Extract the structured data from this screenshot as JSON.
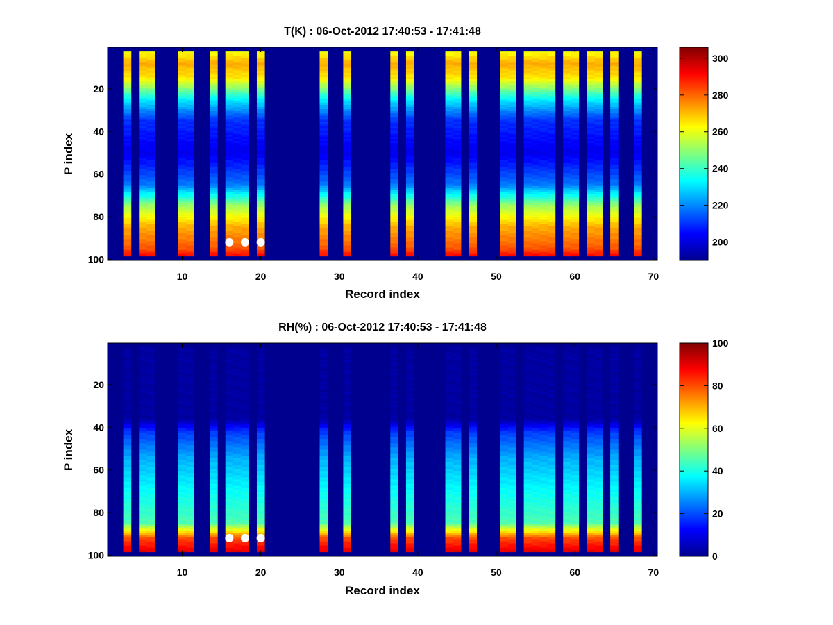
{
  "colors": {
    "background": "#00008f",
    "colormap": [
      "#00008f",
      "#0000ff",
      "#00ffff",
      "#ffff00",
      "#ff0000",
      "#800000"
    ],
    "marker": "#ffffff"
  },
  "chart_data": [
    {
      "type": "heatmap",
      "title": "T(K) : 06-Oct-2012 17:40:53 - 17:41:48",
      "xlabel": "Record index",
      "ylabel": "P index",
      "xlim": [
        0.5,
        70.5
      ],
      "ylim": [
        0.5,
        100.5
      ],
      "y_reversed": true,
      "xticks": [
        10,
        20,
        30,
        40,
        50,
        60,
        70
      ],
      "yticks": [
        20,
        40,
        60,
        80,
        100
      ],
      "colorbar": {
        "min": 190,
        "max": 306,
        "ticks": [
          200,
          220,
          240,
          260,
          280,
          300
        ]
      },
      "records": [
        3,
        5,
        6,
        10,
        11,
        14,
        16,
        17,
        18,
        20,
        28,
        31,
        37,
        39,
        44,
        45,
        47,
        51,
        52,
        54,
        55,
        56,
        57,
        59,
        60,
        62,
        63,
        65,
        68
      ],
      "profile": {
        "p_index": [
          3,
          8,
          15,
          25,
          35,
          50,
          65,
          75,
          85,
          95,
          98
        ],
        "values": [
          262,
          272,
          265,
          232,
          210,
          202,
          218,
          252,
          272,
          282,
          290
        ]
      },
      "markers": {
        "x": [
          16,
          18,
          20
        ],
        "y": [
          92,
          92,
          92
        ]
      }
    },
    {
      "type": "heatmap",
      "title": "RH(%) : 06-Oct-2012 17:40:53 - 17:41:48",
      "xlabel": "Record index",
      "ylabel": "P index",
      "xlim": [
        0.5,
        70.5
      ],
      "ylim": [
        0.5,
        100.5
      ],
      "y_reversed": true,
      "xticks": [
        10,
        20,
        30,
        40,
        50,
        60,
        70
      ],
      "yticks": [
        20,
        40,
        60,
        80,
        100
      ],
      "colorbar": {
        "min": 0,
        "max": 100,
        "ticks": [
          0,
          20,
          40,
          60,
          80,
          100
        ]
      },
      "records": [
        3,
        5,
        6,
        10,
        11,
        14,
        16,
        17,
        18,
        20,
        28,
        31,
        37,
        39,
        44,
        45,
        47,
        51,
        52,
        54,
        55,
        56,
        57,
        59,
        60,
        62,
        63,
        65,
        68
      ],
      "profile": {
        "p_index": [
          3,
          36,
          42,
          55,
          70,
          85,
          92,
          98
        ],
        "values": [
          2,
          2,
          18,
          30,
          38,
          45,
          80,
          90
        ]
      },
      "markers": {
        "x": [
          16,
          18,
          20
        ],
        "y": [
          92,
          92,
          92
        ]
      }
    }
  ]
}
